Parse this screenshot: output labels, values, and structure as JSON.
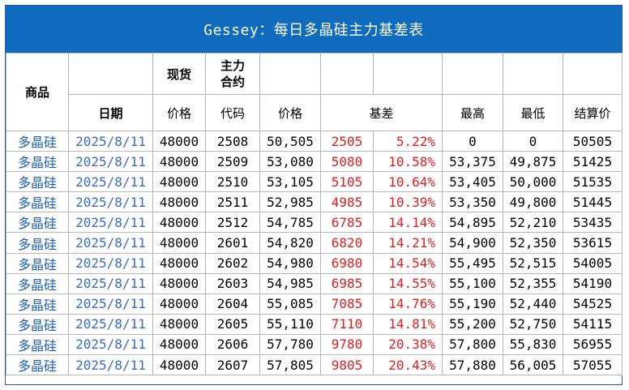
{
  "title": "Gessey：每日多晶硅主力基差表",
  "header": {
    "product": "商品",
    "spot": "现货",
    "main_contract": "主力合约",
    "date": "日期",
    "spot_price": "价格",
    "code": "代码",
    "price": "价格",
    "basis": "基差",
    "high": "最高",
    "low": "最低",
    "settle": "结算价"
  },
  "rows": [
    {
      "product": "多晶硅",
      "date": "2025/8/11",
      "spot": "48000",
      "code": "2508",
      "price": "50,505",
      "basis": "2505",
      "basis_pct": "5.22%",
      "high": "0",
      "low": "0",
      "settle": "50505"
    },
    {
      "product": "多晶硅",
      "date": "2025/8/11",
      "spot": "48000",
      "code": "2509",
      "price": "53,080",
      "basis": "5080",
      "basis_pct": "10.58%",
      "high": "53,375",
      "low": "49,875",
      "settle": "51425"
    },
    {
      "product": "多晶硅",
      "date": "2025/8/11",
      "spot": "48000",
      "code": "2510",
      "price": "53,105",
      "basis": "5105",
      "basis_pct": "10.64%",
      "high": "53,405",
      "low": "50,000",
      "settle": "51535"
    },
    {
      "product": "多晶硅",
      "date": "2025/8/11",
      "spot": "48000",
      "code": "2511",
      "price": "52,985",
      "basis": "4985",
      "basis_pct": "10.39%",
      "high": "53,350",
      "low": "49,800",
      "settle": "51445"
    },
    {
      "product": "多晶硅",
      "date": "2025/8/11",
      "spot": "48000",
      "code": "2512",
      "price": "54,785",
      "basis": "6785",
      "basis_pct": "14.14%",
      "high": "54,895",
      "low": "52,210",
      "settle": "53435"
    },
    {
      "product": "多晶硅",
      "date": "2025/8/11",
      "spot": "48000",
      "code": "2601",
      "price": "54,820",
      "basis": "6820",
      "basis_pct": "14.21%",
      "high": "54,900",
      "low": "52,350",
      "settle": "53615"
    },
    {
      "product": "多晶硅",
      "date": "2025/8/11",
      "spot": "48000",
      "code": "2602",
      "price": "54,980",
      "basis": "6980",
      "basis_pct": "14.54%",
      "high": "55,495",
      "low": "52,515",
      "settle": "54005"
    },
    {
      "product": "多晶硅",
      "date": "2025/8/11",
      "spot": "48000",
      "code": "2603",
      "price": "54,985",
      "basis": "6985",
      "basis_pct": "14.55%",
      "high": "55,100",
      "low": "52,355",
      "settle": "54190"
    },
    {
      "product": "多晶硅",
      "date": "2025/8/11",
      "spot": "48000",
      "code": "2604",
      "price": "55,085",
      "basis": "7085",
      "basis_pct": "14.76%",
      "high": "55,190",
      "low": "52,440",
      "settle": "54525"
    },
    {
      "product": "多晶硅",
      "date": "2025/8/11",
      "spot": "48000",
      "code": "2605",
      "price": "55,110",
      "basis": "7110",
      "basis_pct": "14.81%",
      "high": "55,200",
      "low": "52,750",
      "settle": "54115"
    },
    {
      "product": "多晶硅",
      "date": "2025/8/11",
      "spot": "48000",
      "code": "2606",
      "price": "57,780",
      "basis": "9780",
      "basis_pct": "20.38%",
      "high": "57,800",
      "low": "55,830",
      "settle": "56955"
    },
    {
      "product": "多晶硅",
      "date": "2025/8/11",
      "spot": "48000",
      "code": "2607",
      "price": "57,805",
      "basis": "9805",
      "basis_pct": "20.43%",
      "high": "57,880",
      "low": "56,005",
      "settle": "57055"
    }
  ],
  "colors": {
    "title_bg": "#0f6bbd",
    "basis_text": "#e02020",
    "product_text": "#1f5fbf",
    "date_text": "#3b6bc4"
  }
}
